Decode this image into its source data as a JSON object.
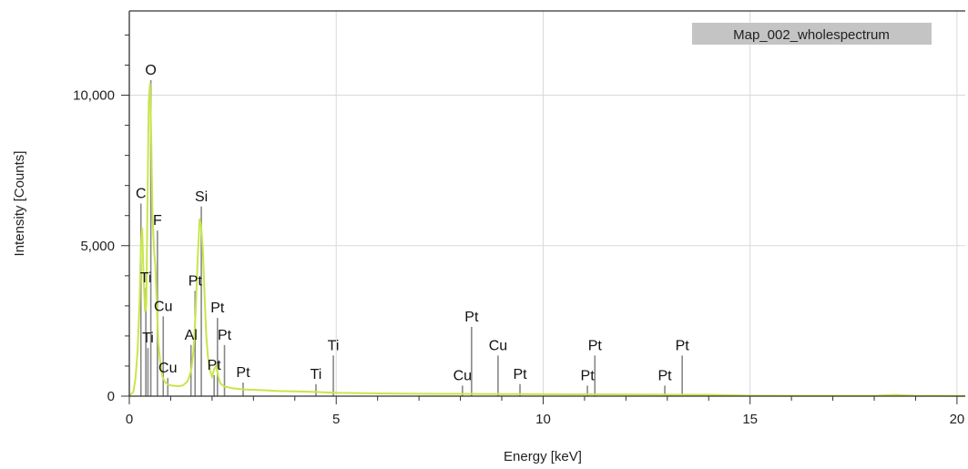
{
  "chart_data": {
    "type": "line",
    "title": "",
    "xlabel": "Energy [keV]",
    "ylabel": "Intensity [Counts]",
    "xlim": [
      0,
      20.2
    ],
    "ylim": [
      0,
      12800
    ],
    "x_ticks": [
      0,
      5,
      10,
      15,
      20
    ],
    "x_tick_labels": [
      "0",
      "5",
      "10",
      "15",
      "20"
    ],
    "y_ticks": [
      0,
      5000,
      10000
    ],
    "y_tick_labels": [
      "0",
      "5,000",
      "10,000"
    ],
    "grid": true,
    "legend": {
      "position": "top-right",
      "entries": [
        "Map_002_wholespectrum"
      ]
    },
    "series": [
      {
        "name": "Map_002_wholespectrum",
        "color": "#c8e64a",
        "x": [
          0.0,
          0.1,
          0.15,
          0.2,
          0.25,
          0.28,
          0.31,
          0.34,
          0.38,
          0.41,
          0.44,
          0.47,
          0.5,
          0.53,
          0.56,
          0.6,
          0.63,
          0.66,
          0.7,
          0.75,
          0.8,
          0.85,
          0.9,
          0.95,
          1.0,
          1.1,
          1.2,
          1.3,
          1.4,
          1.45,
          1.5,
          1.55,
          1.6,
          1.65,
          1.7,
          1.74,
          1.78,
          1.82,
          1.86,
          1.9,
          1.95,
          2.0,
          2.05,
          2.1,
          2.15,
          2.2,
          2.3,
          2.5,
          2.8,
          3.2,
          3.6,
          4.0,
          4.5,
          5.0,
          6.0,
          7.0,
          8.0,
          9.0,
          10.0,
          11.0,
          12.0,
          13.0,
          14.0,
          14.5,
          15.0,
          16.0,
          17.0,
          18.0,
          18.5,
          19.0,
          20.0,
          20.2
        ],
        "y": [
          0,
          150,
          600,
          1500,
          3200,
          5000,
          5600,
          4200,
          2800,
          3000,
          6500,
          9800,
          10400,
          8600,
          6000,
          4800,
          4300,
          3200,
          1800,
          1100,
          650,
          500,
          420,
          380,
          360,
          340,
          330,
          360,
          480,
          650,
          900,
          1500,
          2700,
          4500,
          5900,
          5600,
          4800,
          3300,
          2000,
          1300,
          850,
          650,
          900,
          1000,
          650,
          420,
          320,
          260,
          220,
          200,
          170,
          160,
          140,
          110,
          90,
          80,
          75,
          70,
          65,
          60,
          55,
          50,
          45,
          30,
          15,
          12,
          10,
          10,
          40,
          10,
          8,
          8
        ]
      }
    ],
    "peaks": [
      {
        "element": "O",
        "energy": 0.52,
        "height": 10500
      },
      {
        "element": "C",
        "energy": 0.28,
        "height": 6400
      },
      {
        "element": "F",
        "energy": 0.68,
        "height": 5500
      },
      {
        "element": "Si",
        "energy": 1.74,
        "height": 6300
      },
      {
        "element": "Ti",
        "energy": 0.4,
        "height": 3600
      },
      {
        "element": "Ti",
        "energy": 0.45,
        "height": 1600
      },
      {
        "element": "Cu",
        "energy": 0.82,
        "height": 2650
      },
      {
        "element": "Cu",
        "energy": 0.93,
        "height": 600
      },
      {
        "element": "Al",
        "energy": 1.49,
        "height": 1700
      },
      {
        "element": "Pt",
        "energy": 1.59,
        "height": 3500
      },
      {
        "element": "Pt",
        "energy": 2.05,
        "height": 700
      },
      {
        "element": "Pt",
        "energy": 2.13,
        "height": 2600
      },
      {
        "element": "Pt",
        "energy": 2.3,
        "height": 1700
      },
      {
        "element": "Pt",
        "energy": 2.75,
        "height": 450
      },
      {
        "element": "Ti",
        "energy": 4.51,
        "height": 400
      },
      {
        "element": "Ti",
        "energy": 4.93,
        "height": 1350
      },
      {
        "element": "Cu",
        "energy": 8.05,
        "height": 350
      },
      {
        "element": "Pt",
        "energy": 8.27,
        "height": 2300
      },
      {
        "element": "Cu",
        "energy": 8.91,
        "height": 1350
      },
      {
        "element": "Pt",
        "energy": 9.44,
        "height": 400
      },
      {
        "element": "Pt",
        "energy": 11.07,
        "height": 350
      },
      {
        "element": "Pt",
        "energy": 11.25,
        "height": 1350
      },
      {
        "element": "Pt",
        "energy": 12.94,
        "height": 350
      },
      {
        "element": "Pt",
        "energy": 13.36,
        "height": 1350
      }
    ]
  },
  "colors": {
    "spectrum": "#c8e64a",
    "marker": "#888888",
    "grid": "#d9d9d9",
    "legend_bg": "#c4c4c4"
  }
}
